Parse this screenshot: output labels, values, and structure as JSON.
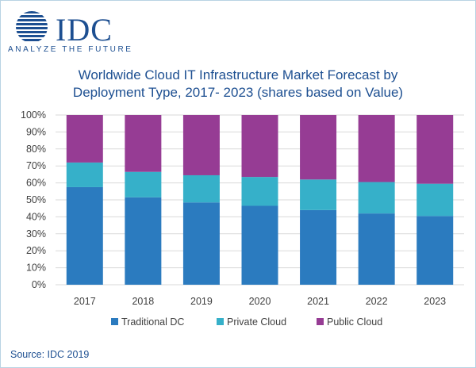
{
  "brand": {
    "name": "IDC",
    "tagline": "ANALYZE THE FUTURE",
    "color": "#1d4f91"
  },
  "chart_data": {
    "type": "bar",
    "stacked": true,
    "title_line1": "Worldwide Cloud IT Infrastructure Market Forecast by",
    "title_line2": "Deployment Type, 2017- 2023 (shares based on Value)",
    "categories": [
      "2017",
      "2018",
      "2019",
      "2020",
      "2021",
      "2022",
      "2023"
    ],
    "series": [
      {
        "name": "Traditional DC",
        "color": "#2b7bbf",
        "values": [
          57.5,
          51.5,
          48.5,
          46.5,
          44,
          42,
          40.5
        ]
      },
      {
        "name": "Private Cloud",
        "color": "#36b0c9",
        "values": [
          14.5,
          15,
          16,
          17,
          18,
          18.5,
          19
        ]
      },
      {
        "name": "Public Cloud",
        "color": "#963c94",
        "values": [
          28,
          33.5,
          35.5,
          36.5,
          38,
          39.5,
          40.5
        ]
      }
    ],
    "ylim": [
      0,
      100
    ],
    "y_ticks": [
      "0%",
      "10%",
      "20%",
      "30%",
      "40%",
      "50%",
      "60%",
      "70%",
      "80%",
      "90%",
      "100%"
    ],
    "grid": true,
    "legend_position": "bottom"
  },
  "source": "Source: IDC 2019"
}
